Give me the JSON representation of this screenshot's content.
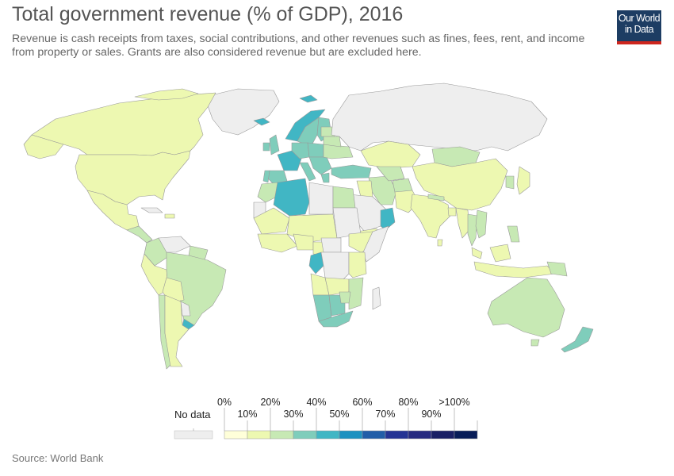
{
  "header": {
    "title": "Total government revenue (% of GDP), 2016",
    "subtitle": "Revenue is cash receipts from taxes, social contributions, and other revenues such as fines, fees, rent, and income from property or sales. Grants are also considered revenue but are excluded here."
  },
  "logo": {
    "line1": "Our World",
    "line2": "in Data",
    "bg_color": "#1d3d63",
    "accent_color": "#ce261e"
  },
  "legend": {
    "no_data_label": "No data",
    "no_data_color": "#eeeeee",
    "top_labels": [
      "0%",
      "20%",
      "40%",
      "60%",
      "80%",
      ">100%"
    ],
    "bottom_labels": [
      "10%",
      "30%",
      "50%",
      "70%",
      "90%"
    ],
    "bins": [
      {
        "range": "0-10%",
        "color": "#ffffd9"
      },
      {
        "range": "10-20%",
        "color": "#edf8b1"
      },
      {
        "range": "20-30%",
        "color": "#c7e9b4"
      },
      {
        "range": "30-40%",
        "color": "#7fcdbb"
      },
      {
        "range": "40-50%",
        "color": "#41b6c4"
      },
      {
        "range": "50-60%",
        "color": "#1d91c0"
      },
      {
        "range": "60-70%",
        "color": "#225ea8"
      },
      {
        "range": "70-80%",
        "color": "#253494"
      },
      {
        "range": "80-90%",
        "color": "#262a80"
      },
      {
        "range": "90-100%",
        "color": "#1a2065"
      },
      {
        "range": ">100%",
        "color": "#081d58"
      }
    ]
  },
  "map": {
    "ocean_color": "#ffffff",
    "border_color": "#999999",
    "regions": [
      {
        "name": "Greenland",
        "bin": "no-data"
      },
      {
        "name": "Canada",
        "bin": "10-20%"
      },
      {
        "name": "United States",
        "bin": "10-20%"
      },
      {
        "name": "Mexico",
        "bin": "10-20%"
      },
      {
        "name": "Brazil",
        "bin": "20-30%"
      },
      {
        "name": "Argentina",
        "bin": "10-20%"
      },
      {
        "name": "Russia",
        "bin": "no-data"
      },
      {
        "name": "China",
        "bin": "10-20%"
      },
      {
        "name": "India",
        "bin": "10-20%"
      },
      {
        "name": "Australia",
        "bin": "20-30%"
      },
      {
        "name": "Algeria",
        "bin": "40-50%"
      },
      {
        "name": "Oman",
        "bin": "40-50%"
      },
      {
        "name": "Norway",
        "bin": "40-50%"
      },
      {
        "name": "France",
        "bin": "40-50%"
      },
      {
        "name": "Kazakhstan",
        "bin": "10-20%"
      },
      {
        "name": "Mongolia",
        "bin": "20-30%"
      },
      {
        "name": "South Africa",
        "bin": "30-40%"
      },
      {
        "name": "New Zealand",
        "bin": "30-40%"
      }
    ]
  },
  "source": "Source: World Bank"
}
